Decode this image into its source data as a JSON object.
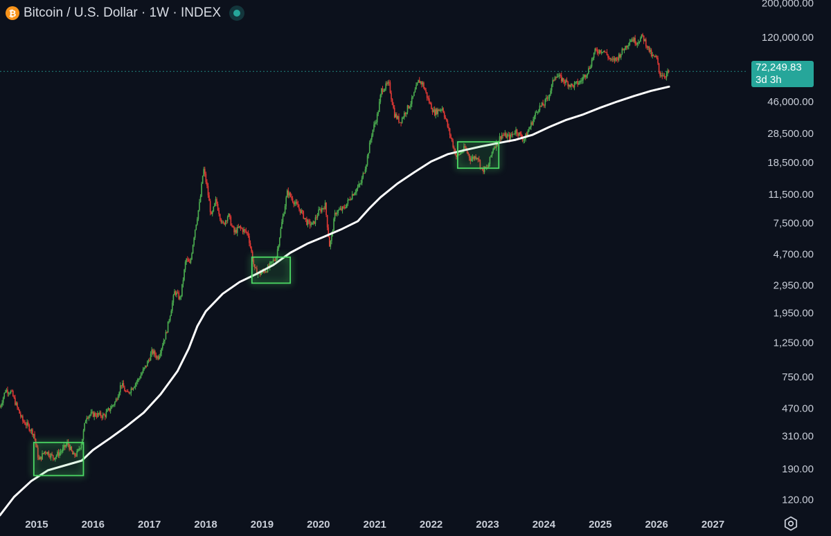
{
  "header": {
    "symbol_icon": "bitcoin-icon",
    "icon_glyph": "₿",
    "title": "Bitcoin / U.S. Dollar · 1W · INDEX",
    "status": "market-status-dot"
  },
  "price_tag": {
    "price": "72,249.83",
    "countdown": "3d 3h"
  },
  "colors": {
    "background": "#0c111c",
    "up_candle": "#4caf50",
    "down_candle": "#e53935",
    "moving_average": "#ffffff",
    "highlight_box": "#4cd964",
    "price_tag": "#26a69a"
  },
  "chart_data": {
    "type": "candlestick",
    "title": "Bitcoin / U.S. Dollar · 1W · INDEX",
    "y_scale": "log",
    "ylim": [
      95,
      210000
    ],
    "xlim": [
      2014.35,
      2027.62
    ],
    "y_ticks": [
      {
        "value": 200000,
        "label": "200,000.00"
      },
      {
        "value": 120000,
        "label": "120,000.00"
      },
      {
        "value": 72249.83,
        "label": "72,249.83"
      },
      {
        "value": 46000,
        "label": "46,000.00"
      },
      {
        "value": 28500,
        "label": "28,500.00"
      },
      {
        "value": 18500,
        "label": "18,500.00"
      },
      {
        "value": 11500,
        "label": "11,500.00"
      },
      {
        "value": 7500,
        "label": "7,500.00"
      },
      {
        "value": 4700,
        "label": "4,700.00"
      },
      {
        "value": 2950,
        "label": "2,950.00"
      },
      {
        "value": 1950,
        "label": "1,950.00"
      },
      {
        "value": 1250,
        "label": "1,250.00"
      },
      {
        "value": 750,
        "label": "750.00"
      },
      {
        "value": 470,
        "label": "470.00"
      },
      {
        "value": 310,
        "label": "310.00"
      },
      {
        "value": 190,
        "label": "190.00"
      },
      {
        "value": 120,
        "label": "120.00"
      }
    ],
    "x_ticks": [
      "2015",
      "2016",
      "2017",
      "2018",
      "2019",
      "2020",
      "2021",
      "2022",
      "2023",
      "2024",
      "2025",
      "2026",
      "2027"
    ],
    "current_price": 72249.83,
    "price_path": [
      [
        2014.35,
        480
      ],
      [
        2014.45,
        620
      ],
      [
        2014.55,
        600
      ],
      [
        2014.65,
        480
      ],
      [
        2014.75,
        390
      ],
      [
        2014.85,
        360
      ],
      [
        2014.95,
        320
      ],
      [
        2015.04,
        215
      ],
      [
        2015.15,
        250
      ],
      [
        2015.3,
        225
      ],
      [
        2015.45,
        250
      ],
      [
        2015.55,
        280
      ],
      [
        2015.65,
        230
      ],
      [
        2015.72,
        240
      ],
      [
        2015.8,
        285
      ],
      [
        2015.88,
        420
      ],
      [
        2016.0,
        430
      ],
      [
        2016.2,
        420
      ],
      [
        2016.4,
        520
      ],
      [
        2016.5,
        680
      ],
      [
        2016.6,
        580
      ],
      [
        2016.8,
        720
      ],
      [
        2016.95,
        900
      ],
      [
        2017.05,
        1100
      ],
      [
        2017.15,
        1000
      ],
      [
        2017.3,
        1450
      ],
      [
        2017.45,
        2700
      ],
      [
        2017.55,
        2400
      ],
      [
        2017.65,
        4400
      ],
      [
        2017.72,
        4000
      ],
      [
        2017.8,
        6500
      ],
      [
        2017.9,
        10500
      ],
      [
        2017.96,
        17000
      ],
      [
        2018.02,
        13000
      ],
      [
        2018.1,
        8200
      ],
      [
        2018.18,
        10500
      ],
      [
        2018.3,
        7200
      ],
      [
        2018.4,
        8500
      ],
      [
        2018.5,
        6500
      ],
      [
        2018.6,
        7000
      ],
      [
        2018.75,
        6400
      ],
      [
        2018.87,
        3700
      ],
      [
        2018.96,
        3500
      ],
      [
        2019.1,
        3800
      ],
      [
        2019.25,
        4500
      ],
      [
        2019.35,
        7500
      ],
      [
        2019.45,
        12000
      ],
      [
        2019.55,
        10500
      ],
      [
        2019.7,
        8800
      ],
      [
        2019.8,
        7500
      ],
      [
        2019.9,
        7300
      ],
      [
        2020.0,
        8800
      ],
      [
        2020.12,
        9800
      ],
      [
        2020.2,
        5200
      ],
      [
        2020.3,
        8800
      ],
      [
        2020.45,
        9300
      ],
      [
        2020.6,
        11500
      ],
      [
        2020.75,
        13500
      ],
      [
        2020.85,
        18500
      ],
      [
        2020.95,
        29000
      ],
      [
        2021.05,
        38000
      ],
      [
        2021.12,
        55000
      ],
      [
        2021.25,
        60000
      ],
      [
        2021.35,
        38000
      ],
      [
        2021.45,
        34000
      ],
      [
        2021.55,
        40000
      ],
      [
        2021.65,
        46000
      ],
      [
        2021.78,
        63000
      ],
      [
        2021.85,
        60000
      ],
      [
        2021.95,
        47000
      ],
      [
        2022.05,
        39000
      ],
      [
        2022.2,
        42000
      ],
      [
        2022.3,
        31000
      ],
      [
        2022.45,
        20000
      ],
      [
        2022.6,
        23000
      ],
      [
        2022.7,
        19500
      ],
      [
        2022.82,
        20500
      ],
      [
        2022.9,
        16500
      ],
      [
        2023.0,
        17000
      ],
      [
        2023.1,
        23000
      ],
      [
        2023.25,
        28000
      ],
      [
        2023.4,
        27000
      ],
      [
        2023.5,
        30000
      ],
      [
        2023.65,
        26000
      ],
      [
        2023.8,
        34500
      ],
      [
        2023.9,
        42000
      ],
      [
        2024.0,
        44000
      ],
      [
        2024.1,
        52000
      ],
      [
        2024.2,
        69000
      ],
      [
        2024.35,
        63000
      ],
      [
        2024.5,
        58000
      ],
      [
        2024.65,
        62000
      ],
      [
        2024.8,
        75000
      ],
      [
        2024.9,
        97000
      ],
      [
        2025.05,
        100000
      ],
      [
        2025.2,
        84000
      ],
      [
        2025.3,
        88000
      ],
      [
        2025.45,
        105000
      ],
      [
        2025.55,
        118000
      ],
      [
        2025.65,
        112000
      ],
      [
        2025.75,
        122000
      ],
      [
        2025.82,
        108000
      ],
      [
        2025.92,
        90000
      ],
      [
        2026.0,
        88000
      ],
      [
        2026.05,
        70000
      ],
      [
        2026.15,
        68000
      ],
      [
        2026.22,
        72249.83
      ]
    ],
    "moving_average": [
      [
        2014.35,
        95
      ],
      [
        2014.6,
        125
      ],
      [
        2014.9,
        158
      ],
      [
        2015.2,
        186
      ],
      [
        2015.5,
        200
      ],
      [
        2015.8,
        215
      ],
      [
        2016.0,
        252
      ],
      [
        2016.3,
        300
      ],
      [
        2016.6,
        360
      ],
      [
        2016.9,
        440
      ],
      [
        2017.2,
        580
      ],
      [
        2017.5,
        820
      ],
      [
        2017.7,
        1150
      ],
      [
        2017.85,
        1600
      ],
      [
        2018.0,
        2000
      ],
      [
        2018.3,
        2600
      ],
      [
        2018.6,
        3100
      ],
      [
        2018.9,
        3500
      ],
      [
        2019.2,
        4000
      ],
      [
        2019.5,
        4800
      ],
      [
        2019.8,
        5500
      ],
      [
        2020.1,
        6100
      ],
      [
        2020.4,
        6800
      ],
      [
        2020.7,
        7700
      ],
      [
        2020.9,
        9300
      ],
      [
        2021.1,
        11000
      ],
      [
        2021.4,
        13500
      ],
      [
        2021.7,
        16000
      ],
      [
        2022.0,
        18800
      ],
      [
        2022.3,
        21000
      ],
      [
        2022.6,
        22300
      ],
      [
        2022.9,
        23600
      ],
      [
        2023.2,
        24800
      ],
      [
        2023.5,
        26000
      ],
      [
        2023.8,
        28000
      ],
      [
        2024.1,
        31500
      ],
      [
        2024.4,
        35000
      ],
      [
        2024.7,
        38000
      ],
      [
        2025.0,
        42000
      ],
      [
        2025.3,
        46000
      ],
      [
        2025.6,
        50000
      ],
      [
        2025.9,
        54000
      ],
      [
        2026.22,
        57500
      ]
    ],
    "highlight_boxes": [
      {
        "x0": 2014.95,
        "x1": 2015.83,
        "y0": 172,
        "y1": 282
      },
      {
        "x0": 2018.82,
        "x1": 2019.5,
        "y0": 3050,
        "y1": 4500
      },
      {
        "x0": 2022.47,
        "x1": 2023.2,
        "y0": 17000,
        "y1": 25200
      }
    ]
  }
}
